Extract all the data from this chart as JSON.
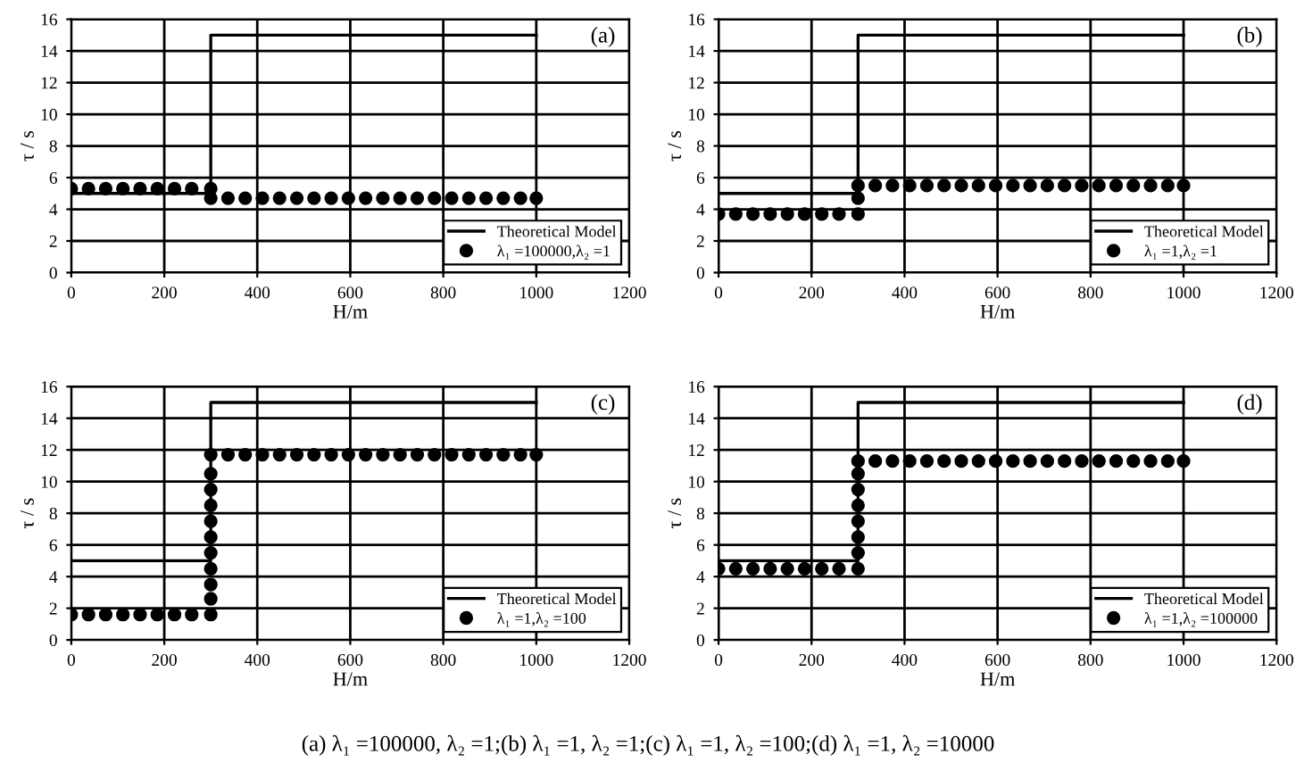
{
  "chart_data": [
    {
      "type": "line",
      "xlabel": "H/m",
      "ylabel": "τ / s",
      "xlim": [
        0,
        1200
      ],
      "xticks": [
        0,
        200,
        400,
        600,
        800,
        1000,
        1200
      ],
      "ylim": [
        0,
        16
      ],
      "yticks": [
        0,
        2,
        4,
        6,
        8,
        10,
        12,
        14,
        16
      ],
      "grid": true,
      "legend": "bottom right",
      "annotations": [
        "(a)"
      ],
      "series": [
        {
          "name": "Theoretical Model",
          "type": "line",
          "color": "#000000",
          "line_style": "solid",
          "x": [
            0,
            300,
            300,
            1000
          ],
          "values": [
            5,
            5,
            15,
            15
          ]
        },
        {
          "name": "λ₁ =100000,λ₂ =1",
          "type": "scatter",
          "marker": "circle",
          "color": "#000000",
          "x": [
            0,
            37,
            74,
            111,
            148,
            185,
            222,
            259,
            300,
            300,
            337,
            374,
            411,
            448,
            485,
            522,
            559,
            596,
            633,
            670,
            707,
            744,
            781,
            818,
            855,
            892,
            929,
            966,
            1000
          ],
          "values": [
            5.3,
            5.3,
            5.3,
            5.3,
            5.3,
            5.3,
            5.3,
            5.3,
            5.3,
            4.7,
            4.7,
            4.7,
            4.7,
            4.7,
            4.7,
            4.7,
            4.7,
            4.7,
            4.7,
            4.7,
            4.7,
            4.7,
            4.7,
            4.7,
            4.7,
            4.7,
            4.7,
            4.7,
            4.7
          ]
        }
      ]
    },
    {
      "type": "line",
      "xlabel": "H/m",
      "ylabel": "τ / s",
      "xlim": [
        0,
        1200
      ],
      "xticks": [
        0,
        200,
        400,
        600,
        800,
        1000,
        1200
      ],
      "ylim": [
        0,
        16
      ],
      "yticks": [
        0,
        2,
        4,
        6,
        8,
        10,
        12,
        14,
        16
      ],
      "grid": true,
      "legend": "bottom right",
      "annotations": [
        "(b)"
      ],
      "series": [
        {
          "name": "Theoretical Model",
          "type": "line",
          "color": "#000000",
          "line_style": "solid",
          "x": [
            0,
            300,
            300,
            1000
          ],
          "values": [
            5,
            5,
            15,
            15
          ]
        },
        {
          "name": "λ₁ =1,λ₂ =1",
          "type": "scatter",
          "marker": "circle",
          "color": "#000000",
          "x": [
            0,
            37,
            74,
            111,
            148,
            185,
            222,
            259,
            300,
            300,
            300,
            337,
            374,
            411,
            448,
            485,
            522,
            559,
            596,
            633,
            670,
            707,
            744,
            781,
            818,
            855,
            892,
            929,
            966,
            1000
          ],
          "values": [
            3.7,
            3.7,
            3.7,
            3.7,
            3.7,
            3.7,
            3.7,
            3.7,
            3.7,
            4.7,
            5.5,
            5.5,
            5.5,
            5.5,
            5.5,
            5.5,
            5.5,
            5.5,
            5.5,
            5.5,
            5.5,
            5.5,
            5.5,
            5.5,
            5.5,
            5.5,
            5.5,
            5.5,
            5.5,
            5.5
          ]
        }
      ]
    },
    {
      "type": "line",
      "xlabel": "H/m",
      "ylabel": "τ / s",
      "xlim": [
        0,
        1200
      ],
      "xticks": [
        0,
        200,
        400,
        600,
        800,
        1000,
        1200
      ],
      "ylim": [
        0,
        16
      ],
      "yticks": [
        0,
        2,
        4,
        6,
        8,
        10,
        12,
        14,
        16
      ],
      "grid": true,
      "legend": "bottom right",
      "annotations": [
        "(c)"
      ],
      "series": [
        {
          "name": "Theoretical Model",
          "type": "line",
          "color": "#000000",
          "line_style": "solid",
          "x": [
            0,
            300,
            300,
            1000
          ],
          "values": [
            5,
            5,
            15,
            15
          ]
        },
        {
          "name": "λ₁ =1,λ₂ =100",
          "type": "scatter",
          "marker": "circle",
          "color": "#000000",
          "x": [
            0,
            37,
            74,
            111,
            148,
            185,
            222,
            259,
            300,
            300,
            300,
            300,
            300,
            300,
            300,
            300,
            300,
            300,
            300,
            337,
            374,
            411,
            448,
            485,
            522,
            559,
            596,
            633,
            670,
            707,
            744,
            781,
            818,
            855,
            892,
            929,
            966,
            1000
          ],
          "values": [
            1.6,
            1.6,
            1.6,
            1.6,
            1.6,
            1.6,
            1.6,
            1.6,
            1.6,
            2.6,
            3.5,
            4.5,
            5.5,
            6.5,
            7.5,
            8.5,
            9.5,
            10.5,
            11.7,
            11.7,
            11.7,
            11.7,
            11.7,
            11.7,
            11.7,
            11.7,
            11.7,
            11.7,
            11.7,
            11.7,
            11.7,
            11.7,
            11.7,
            11.7,
            11.7,
            11.7,
            11.7,
            11.7
          ]
        }
      ]
    },
    {
      "type": "line",
      "xlabel": "H/m",
      "ylabel": "τ / s",
      "xlim": [
        0,
        1200
      ],
      "xticks": [
        0,
        200,
        400,
        600,
        800,
        1000,
        1200
      ],
      "ylim": [
        0,
        16
      ],
      "yticks": [
        0,
        2,
        4,
        6,
        8,
        10,
        12,
        14,
        16
      ],
      "grid": true,
      "legend": "bottom right",
      "annotations": [
        "(d)",
        "(a) λ₁ =100000, λ₂ =1;(b) λ₁ =1, λ₂ =1;(c) λ₁ =1, λ₂ =100;(d) λ₁ =1, λ₂ =10000"
      ],
      "series": [
        {
          "name": "Theoretical Model",
          "type": "line",
          "color": "#000000",
          "line_style": "solid",
          "x": [
            0,
            300,
            300,
            1000
          ],
          "values": [
            5,
            5,
            15,
            15
          ]
        },
        {
          "name": "λ₁ =1,λ₂ =100000",
          "type": "scatter",
          "marker": "circle",
          "color": "#000000",
          "x": [
            0,
            37,
            74,
            111,
            148,
            185,
            222,
            259,
            300,
            300,
            300,
            300,
            300,
            300,
            300,
            300,
            337,
            374,
            411,
            448,
            485,
            522,
            559,
            596,
            633,
            670,
            707,
            744,
            781,
            818,
            855,
            892,
            929,
            966,
            1000
          ],
          "values": [
            4.5,
            4.5,
            4.5,
            4.5,
            4.5,
            4.5,
            4.5,
            4.5,
            4.5,
            5.5,
            6.5,
            7.5,
            8.5,
            9.5,
            10.5,
            11.3,
            11.3,
            11.3,
            11.3,
            11.3,
            11.3,
            11.3,
            11.3,
            11.3,
            11.3,
            11.3,
            11.3,
            11.3,
            11.3,
            11.3,
            11.3,
            11.3,
            11.3,
            11.3,
            11.3
          ]
        }
      ]
    }
  ]
}
